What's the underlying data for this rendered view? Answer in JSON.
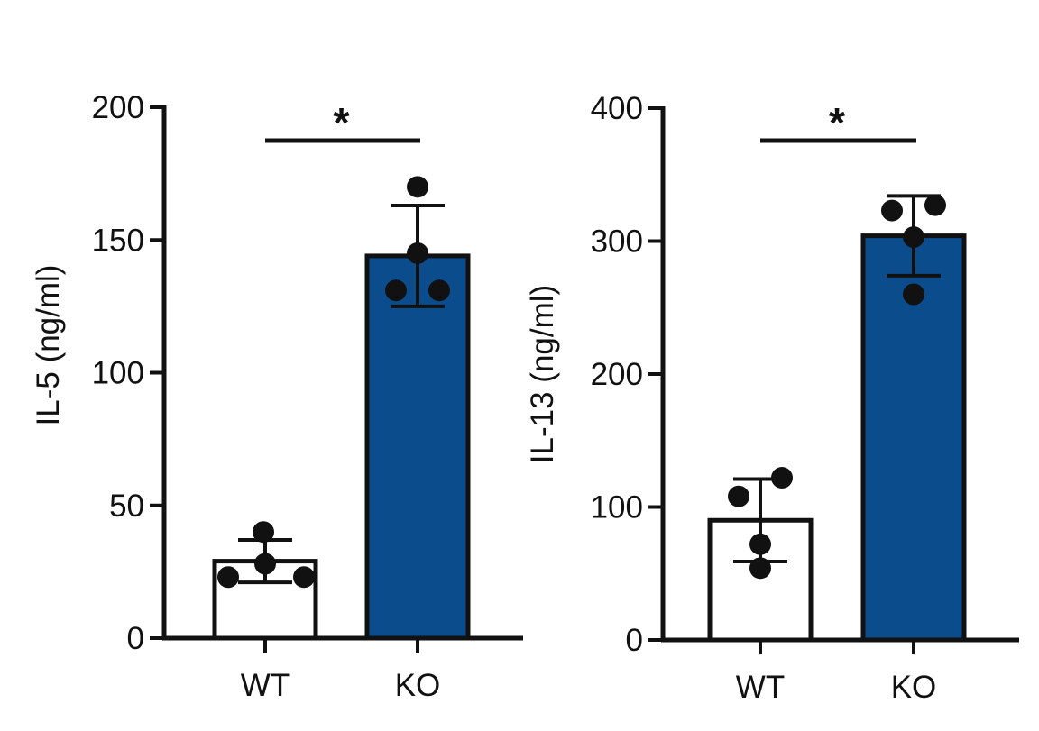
{
  "chart_data": [
    {
      "type": "bar",
      "ylabel": "IL-5 (ng/ml)",
      "xlabel": "",
      "categories": [
        "WT",
        "KO"
      ],
      "values": [
        29,
        144
      ],
      "error": [
        8,
        19
      ],
      "points": [
        [
          23,
          40,
          28,
          23
        ],
        [
          170,
          145,
          131,
          131
        ]
      ],
      "ylim": [
        0,
        200
      ],
      "yticks": [
        0,
        50,
        100,
        150,
        200
      ],
      "significance": {
        "between": [
          "WT",
          "KO"
        ],
        "label": "*"
      },
      "bar_colors": [
        "#ffffff",
        "#0b4d8c"
      ]
    },
    {
      "type": "bar",
      "ylabel": "IL-13 (ng/ml)",
      "xlabel": "",
      "categories": [
        "WT",
        "KO"
      ],
      "values": [
        90,
        304
      ],
      "error": [
        31,
        30
      ],
      "points": [
        [
          108,
          122,
          72,
          54
        ],
        [
          323,
          327,
          303,
          260
        ]
      ],
      "ylim": [
        0,
        400
      ],
      "yticks": [
        0,
        100,
        200,
        300,
        400
      ],
      "significance": {
        "between": [
          "WT",
          "KO"
        ],
        "label": "*"
      },
      "bar_colors": [
        "#ffffff",
        "#0b4d8c"
      ]
    }
  ]
}
